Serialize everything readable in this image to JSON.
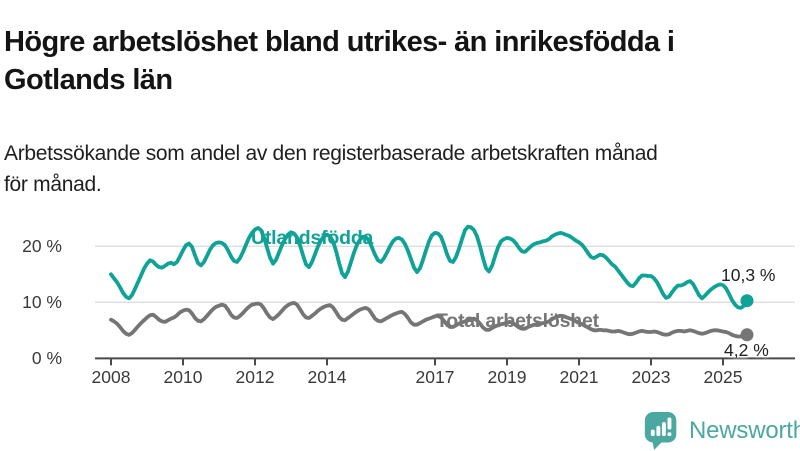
{
  "header": {
    "title_lines": [
      "Högre arbetslöshet bland utrikes- än inrikesfödda i",
      "Gotlands län"
    ],
    "title_full": "Högre arbetslöshet bland utrikes- än inrikesfödda i Gotlands län",
    "subtitle_lines": [
      "Arbetssökande som andel av den registerbaserade arbetskraften månad",
      "för månad."
    ],
    "subtitle_full": "Arbetssökande som andel av den registerbaserade arbetskraften månad för månad."
  },
  "chart_data": {
    "type": "line",
    "x_unit": "month",
    "x_start": "2008-01",
    "x_end": "2025-09",
    "x_tick_labels": [
      "2008",
      "2010",
      "2012",
      "2014",
      "2017",
      "2019",
      "2021",
      "2023",
      "2025"
    ],
    "x_tick_years": [
      2008,
      2010,
      2012,
      2014,
      2017,
      2019,
      2021,
      2023,
      2025
    ],
    "y_tick_labels": [
      "20 %",
      "10 %",
      "0 %"
    ],
    "y_tick_values": [
      20,
      10,
      0
    ],
    "ylim": [
      0,
      26
    ],
    "grid": "horizontal",
    "legend_position": "inline-labels",
    "series": [
      {
        "name": "Utlandsfödda",
        "color": "#0fa297",
        "end_label": "10,3 %",
        "end_value": 10.3,
        "values": [
          15.0,
          14.3,
          13.6,
          12.7,
          11.7,
          11.0,
          10.7,
          11.3,
          12.4,
          13.6,
          14.8,
          16.0,
          16.9,
          17.5,
          17.3,
          16.7,
          16.3,
          16.2,
          16.5,
          16.9,
          17.1,
          16.8,
          17.2,
          18.2,
          19.3,
          20.2,
          20.5,
          19.9,
          18.4,
          17.0,
          16.6,
          17.2,
          18.3,
          19.4,
          20.2,
          20.6,
          20.7,
          20.6,
          20.2,
          19.3,
          18.2,
          17.4,
          17.2,
          17.9,
          19.0,
          20.3,
          21.5,
          22.4,
          23.0,
          23.3,
          22.9,
          21.6,
          19.8,
          18.0,
          16.9,
          17.6,
          18.9,
          20.2,
          21.3,
          22.1,
          22.5,
          22.3,
          21.6,
          20.2,
          18.4,
          16.8,
          16.3,
          17.2,
          18.6,
          20.0,
          21.1,
          21.8,
          22.1,
          21.8,
          20.9,
          19.2,
          17.1,
          15.2,
          14.5,
          15.5,
          17.2,
          18.9,
          20.3,
          21.2,
          21.7,
          21.6,
          21.0,
          19.8,
          18.5,
          17.5,
          17.2,
          17.9,
          18.9,
          20.0,
          20.9,
          21.4,
          21.5,
          21.2,
          20.4,
          19.2,
          17.7,
          16.2,
          15.4,
          16.1,
          17.6,
          19.3,
          20.9,
          22.0,
          22.4,
          22.3,
          21.7,
          20.3,
          18.6,
          17.4,
          17.2,
          18.1,
          19.6,
          21.3,
          22.9,
          23.5,
          23.4,
          22.9,
          21.8,
          20.0,
          17.9,
          16.1,
          15.5,
          16.5,
          18.2,
          19.8,
          20.9,
          21.3,
          21.5,
          21.4,
          21.1,
          20.5,
          19.7,
          19.1,
          19.0,
          19.5,
          20.0,
          20.4,
          20.6,
          20.7,
          20.9,
          21.0,
          21.3,
          21.8,
          22.1,
          22.3,
          22.4,
          22.2,
          22.0,
          21.8,
          21.4,
          21.0,
          20.7,
          20.3,
          19.6,
          18.8,
          18.1,
          17.9,
          18.2,
          18.5,
          18.4,
          18.0,
          17.4,
          16.8,
          16.4,
          15.7,
          15.0,
          14.3,
          13.6,
          13.0,
          12.9,
          13.5,
          14.3,
          14.8,
          14.8,
          14.7,
          14.7,
          14.3,
          13.6,
          12.6,
          11.5,
          10.8,
          11.0,
          11.8,
          12.5,
          13.0,
          13.0,
          13.2,
          13.6,
          13.8,
          13.3,
          12.3,
          11.3,
          10.7,
          11.2,
          11.8,
          12.3,
          12.7,
          13.0,
          13.2,
          13.1,
          12.5,
          11.5,
          10.4,
          9.6,
          9.1,
          9.0,
          9.4,
          10.3
        ]
      },
      {
        "name": "Total arbetslöshet",
        "color": "#757575",
        "end_label": "4,2 %",
        "end_value": 4.2,
        "values": [
          6.9,
          6.6,
          6.2,
          5.6,
          4.9,
          4.4,
          4.2,
          4.5,
          5.1,
          5.7,
          6.3,
          6.8,
          7.3,
          7.7,
          7.8,
          7.4,
          6.9,
          6.6,
          6.5,
          6.8,
          7.1,
          7.3,
          7.7,
          8.2,
          8.5,
          8.7,
          8.6,
          8.0,
          7.2,
          6.7,
          6.6,
          7.0,
          7.6,
          8.2,
          8.8,
          9.2,
          9.4,
          9.6,
          9.4,
          8.7,
          7.8,
          7.3,
          7.2,
          7.6,
          8.1,
          8.7,
          9.2,
          9.6,
          9.7,
          9.8,
          9.6,
          8.9,
          8.0,
          7.3,
          7.0,
          7.4,
          7.9,
          8.5,
          9.1,
          9.5,
          9.8,
          9.9,
          9.6,
          8.8,
          7.9,
          7.3,
          7.2,
          7.6,
          8.0,
          8.5,
          8.9,
          9.2,
          9.4,
          9.5,
          9.1,
          8.3,
          7.4,
          6.9,
          6.8,
          7.2,
          7.6,
          8.0,
          8.4,
          8.7,
          8.9,
          9.0,
          8.7,
          7.9,
          7.1,
          6.7,
          6.6,
          6.9,
          7.2,
          7.5,
          7.8,
          8.0,
          8.2,
          8.3,
          7.9,
          7.2,
          6.4,
          6.0,
          6.0,
          6.3,
          6.6,
          6.9,
          7.1,
          7.3,
          7.5,
          7.6,
          7.3,
          6.7,
          6.0,
          5.6,
          5.6,
          5.9,
          6.2,
          6.4,
          6.6,
          6.8,
          7.0,
          7.1,
          6.8,
          6.2,
          5.5,
          5.1,
          5.1,
          5.4,
          5.7,
          5.9,
          6.1,
          6.2,
          6.4,
          6.5,
          6.3,
          5.9,
          5.5,
          5.3,
          5.3,
          5.6,
          5.8,
          6.0,
          6.1,
          6.2,
          6.3,
          6.4,
          6.6,
          7.0,
          7.3,
          7.5,
          7.6,
          7.5,
          7.3,
          7.1,
          6.9,
          6.6,
          6.3,
          6.1,
          5.8,
          5.5,
          5.2,
          5.0,
          5.0,
          5.1,
          5.0,
          5.0,
          4.9,
          4.8,
          4.8,
          4.9,
          4.8,
          4.6,
          4.4,
          4.3,
          4.4,
          4.6,
          4.8,
          4.9,
          4.8,
          4.7,
          4.7,
          4.8,
          4.7,
          4.5,
          4.3,
          4.2,
          4.3,
          4.6,
          4.8,
          4.9,
          4.9,
          4.8,
          4.9,
          5.0,
          4.9,
          4.7,
          4.5,
          4.4,
          4.5,
          4.7,
          4.9,
          5.0,
          5.0,
          4.9,
          4.8,
          4.7,
          4.5,
          4.2,
          4.0,
          3.9,
          3.9,
          4.0,
          4.2
        ]
      }
    ],
    "style": {
      "gridline_color": "#dedede",
      "axis_color": "#4a4a4a",
      "tick_label_color": "#3a3a3a"
    }
  },
  "logo": {
    "text": "Newsworthy",
    "color": "#4ba8a1",
    "icon": "bar-chart-speech-bubble-icon"
  }
}
